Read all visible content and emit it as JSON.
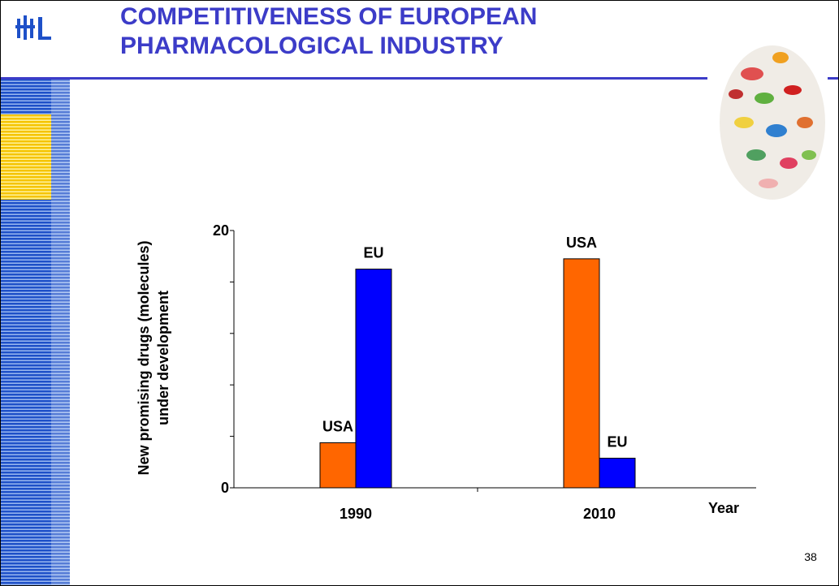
{
  "chart_data": {
    "type": "bar",
    "title": "COMPETITIVENESS OF EUROPEAN PHARMACOLOGICAL INDUSTRY",
    "ylabel": [
      "New promising drugs (molecules)",
      "under development"
    ],
    "xlabel": "Year",
    "categories": [
      "1990",
      "2010"
    ],
    "series": [
      {
        "name": "USA",
        "color": "#ff6600",
        "values": [
          3.5,
          17.8
        ]
      },
      {
        "name": "EU",
        "color": "#0000ff",
        "values": [
          17.0,
          2.3
        ]
      }
    ],
    "ylim": [
      0,
      20
    ],
    "yticks": [
      0,
      20
    ],
    "yminorticks": [
      4,
      8,
      12,
      16
    ],
    "page_number": "38"
  }
}
